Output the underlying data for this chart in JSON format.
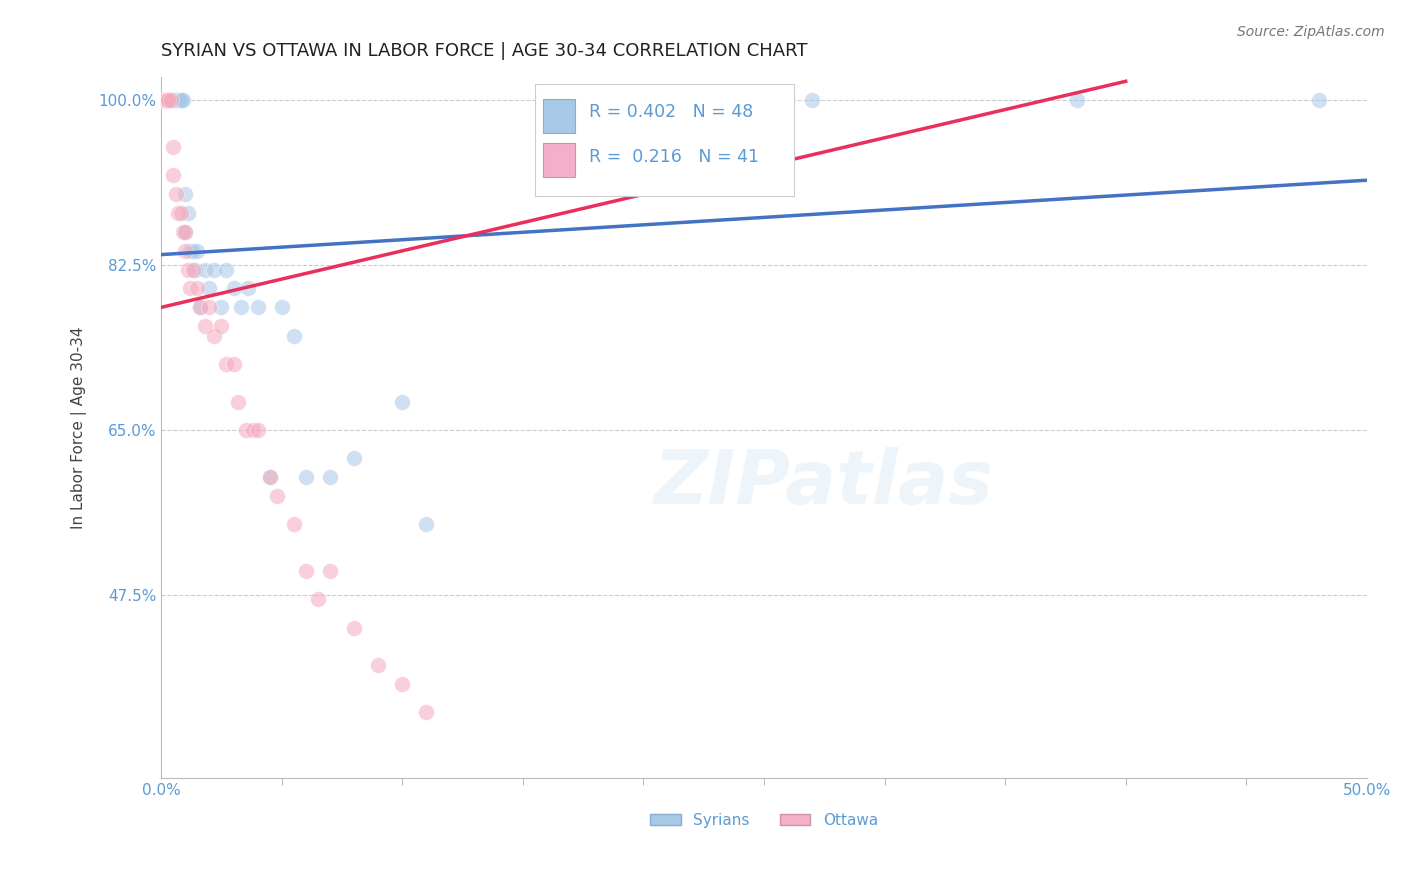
{
  "title": "SYRIAN VS OTTAWA IN LABOR FORCE | AGE 30-34 CORRELATION CHART",
  "source_text": "Source: ZipAtlas.com",
  "watermark": "ZIPatlas",
  "ylabel": "In Labor Force | Age 30-34",
  "xlim": [
    0.0,
    0.5
  ],
  "ylim": [
    0.28,
    1.025
  ],
  "ytick_positions": [
    1.0,
    0.825,
    0.65,
    0.475
  ],
  "yticklabels": [
    "100.0%",
    "82.5%",
    "65.0%",
    "47.5%"
  ],
  "grid_color": "#cccccc",
  "background_color": "#ffffff",
  "syrians_color": "#a8c8e8",
  "ottawa_color": "#f4a8bc",
  "syrians_R": 0.402,
  "syrians_N": 48,
  "ottawa_R": 0.216,
  "ottawa_N": 41,
  "syrians_x": [
    0.001,
    0.001,
    0.001,
    0.002,
    0.002,
    0.003,
    0.003,
    0.003,
    0.004,
    0.004,
    0.005,
    0.005,
    0.005,
    0.006,
    0.006,
    0.007,
    0.007,
    0.008,
    0.008,
    0.009,
    0.01,
    0.01,
    0.011,
    0.012,
    0.013,
    0.014,
    0.015,
    0.016,
    0.018,
    0.02,
    0.022,
    0.025,
    0.027,
    0.03,
    0.033,
    0.036,
    0.04,
    0.045,
    0.05,
    0.055,
    0.06,
    0.07,
    0.08,
    0.1,
    0.11,
    0.27,
    0.38,
    0.48
  ],
  "syrians_y": [
    1.0,
    1.0,
    1.0,
    1.0,
    1.0,
    1.0,
    1.0,
    1.0,
    1.0,
    1.0,
    1.0,
    1.0,
    1.0,
    1.0,
    1.0,
    1.0,
    1.0,
    1.0,
    1.0,
    1.0,
    0.9,
    0.86,
    0.88,
    0.84,
    0.84,
    0.82,
    0.84,
    0.78,
    0.82,
    0.8,
    0.82,
    0.78,
    0.82,
    0.8,
    0.78,
    0.8,
    0.78,
    0.6,
    0.78,
    0.75,
    0.6,
    0.6,
    0.62,
    0.68,
    0.55,
    1.0,
    1.0,
    1.0
  ],
  "ottawa_x": [
    0.001,
    0.001,
    0.001,
    0.002,
    0.002,
    0.003,
    0.003,
    0.004,
    0.005,
    0.005,
    0.006,
    0.007,
    0.008,
    0.009,
    0.01,
    0.01,
    0.011,
    0.012,
    0.013,
    0.015,
    0.016,
    0.018,
    0.02,
    0.022,
    0.025,
    0.027,
    0.03,
    0.032,
    0.035,
    0.038,
    0.04,
    0.045,
    0.048,
    0.055,
    0.06,
    0.065,
    0.07,
    0.08,
    0.09,
    0.1,
    0.11
  ],
  "ottawa_y": [
    1.0,
    1.0,
    1.0,
    1.0,
    1.0,
    1.0,
    1.0,
    1.0,
    0.95,
    0.92,
    0.9,
    0.88,
    0.88,
    0.86,
    0.86,
    0.84,
    0.82,
    0.8,
    0.82,
    0.8,
    0.78,
    0.76,
    0.78,
    0.75,
    0.76,
    0.72,
    0.72,
    0.68,
    0.65,
    0.65,
    0.65,
    0.6,
    0.58,
    0.55,
    0.5,
    0.47,
    0.5,
    0.44,
    0.4,
    0.38,
    0.35
  ],
  "title_color": "#222222",
  "title_fontsize": 13,
  "axis_label_color": "#444444",
  "tick_label_color": "#5b9bd5",
  "legend_box_color_syrians": "#a8c8e8",
  "legend_box_color_ottawa": "#f4b0c8",
  "line_color_syrians": "#4472c4",
  "line_color_ottawa": "#e8305a",
  "dot_alpha": 0.55,
  "dot_size": 130,
  "syrians_line_x": [
    0.0,
    0.5
  ],
  "syrians_line_y": [
    0.836,
    0.915
  ],
  "ottawa_line_x": [
    0.0,
    0.4
  ],
  "ottawa_line_y": [
    0.78,
    1.02
  ]
}
